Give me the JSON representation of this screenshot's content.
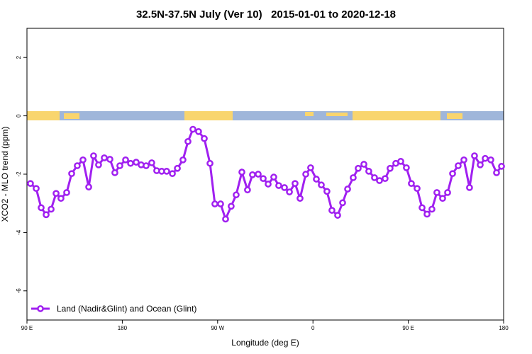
{
  "chart_data": {
    "type": "line",
    "title": "32.5N-37.5N July (Ver 10)   2015-01-01 to 2020-12-18",
    "x_label": "Longitude (deg E)",
    "y_label": "XCO2 - MLO trend (ppm)",
    "xlim": [
      90,
      540
    ],
    "ylim": [
      -7,
      3
    ],
    "xticks": [
      {
        "value": 90,
        "label": "90 E"
      },
      {
        "value": 180,
        "label": "180"
      },
      {
        "value": 270,
        "label": "90 W"
      },
      {
        "value": 360,
        "label": "0"
      },
      {
        "value": 450,
        "label": "90 E"
      },
      {
        "value": 540,
        "label": "180"
      }
    ],
    "yticks": [
      -6,
      -4,
      -2,
      0,
      2
    ],
    "grid": false,
    "legend": "bottom-left",
    "x": [
      93.3,
      98.7,
      103.4,
      108.1,
      112.8,
      117.5,
      122.1,
      127.5,
      132.2,
      137.5,
      142.9,
      148.3,
      152.9,
      157.6,
      163.0,
      168.3,
      173.0,
      177.7,
      183.1,
      187.8,
      193.1,
      197.8,
      202.5,
      207.8,
      212.5,
      217.2,
      221.9,
      227.3,
      232.0,
      237.3,
      242.0,
      246.7,
      252.0,
      257.4,
      262.8,
      267.4,
      272.8,
      277.5,
      282.8,
      287.5,
      292.9,
      298.2,
      302.9,
      308.3,
      313.0,
      317.7,
      323.0,
      327.7,
      333.1,
      337.8,
      343.1,
      347.8,
      353.2,
      357.8,
      363.2,
      367.9,
      373.2,
      377.9,
      383.3,
      388.0,
      392.7,
      398.0,
      402.7,
      408.1,
      412.7,
      418.1,
      422.8,
      428.1,
      432.8,
      438.2,
      442.9,
      448.2,
      452.9,
      458.3,
      463.0,
      467.7,
      472.3,
      477.0,
      482.4,
      487.1,
      491.8,
      497.1,
      502.5,
      507.8,
      512.5,
      517.9,
      522.6,
      527.9,
      533.3,
      538.0
    ],
    "series": [
      {
        "name": "Land (Nadir&Glint) and Ocean (Glint)",
        "color": "#a020f0",
        "values": [
          -2.32,
          -2.49,
          -3.15,
          -3.39,
          -3.2,
          -2.66,
          -2.83,
          -2.63,
          -1.98,
          -1.71,
          -1.51,
          -2.44,
          -1.37,
          -1.68,
          -1.44,
          -1.49,
          -1.95,
          -1.71,
          -1.51,
          -1.63,
          -1.59,
          -1.68,
          -1.71,
          -1.61,
          -1.88,
          -1.9,
          -1.9,
          -1.98,
          -1.8,
          -1.51,
          -0.88,
          -0.46,
          -0.54,
          -0.78,
          -1.63,
          -3.02,
          -3.02,
          -3.54,
          -3.1,
          -2.71,
          -1.93,
          -2.54,
          -2.02,
          -2.0,
          -2.15,
          -2.34,
          -2.1,
          -2.39,
          -2.46,
          -2.61,
          -2.32,
          -2.83,
          -2.0,
          -1.78,
          -2.17,
          -2.37,
          -2.59,
          -3.24,
          -3.41,
          -2.98,
          -2.51,
          -2.12,
          -1.8,
          -1.66,
          -1.9,
          -2.12,
          -2.22,
          -2.15,
          -1.8,
          -1.63,
          -1.56,
          -1.78,
          -2.32,
          -2.49,
          -3.15,
          -3.37,
          -3.2,
          -2.63,
          -2.83,
          -2.63,
          -1.98,
          -1.71,
          -1.51,
          -2.46,
          -1.37,
          -1.68,
          -1.46,
          -1.51,
          -1.95,
          -1.73
        ]
      }
    ]
  }
}
